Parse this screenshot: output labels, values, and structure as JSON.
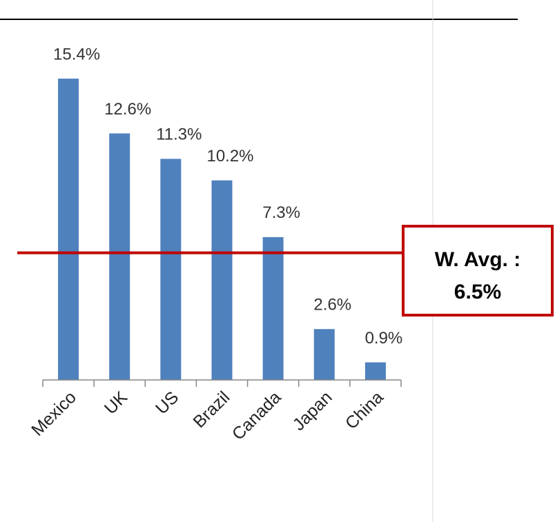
{
  "chart_data": {
    "type": "bar",
    "categories": [
      "Mexico",
      "UK",
      "US",
      "Brazil",
      "Canada",
      "Japan",
      "China"
    ],
    "values": [
      15.4,
      12.6,
      11.3,
      10.2,
      7.3,
      2.6,
      0.9
    ],
    "value_labels": [
      "15.4%",
      "12.6%",
      "11.3%",
      "10.2%",
      "7.3%",
      "2.6%",
      "0.9%"
    ],
    "color": "#4f81bd",
    "ylim": [
      0,
      16
    ],
    "average": {
      "value": 6.5,
      "label": "W. Avg. :",
      "value_label": "6.5%",
      "color": "#c00000"
    }
  }
}
